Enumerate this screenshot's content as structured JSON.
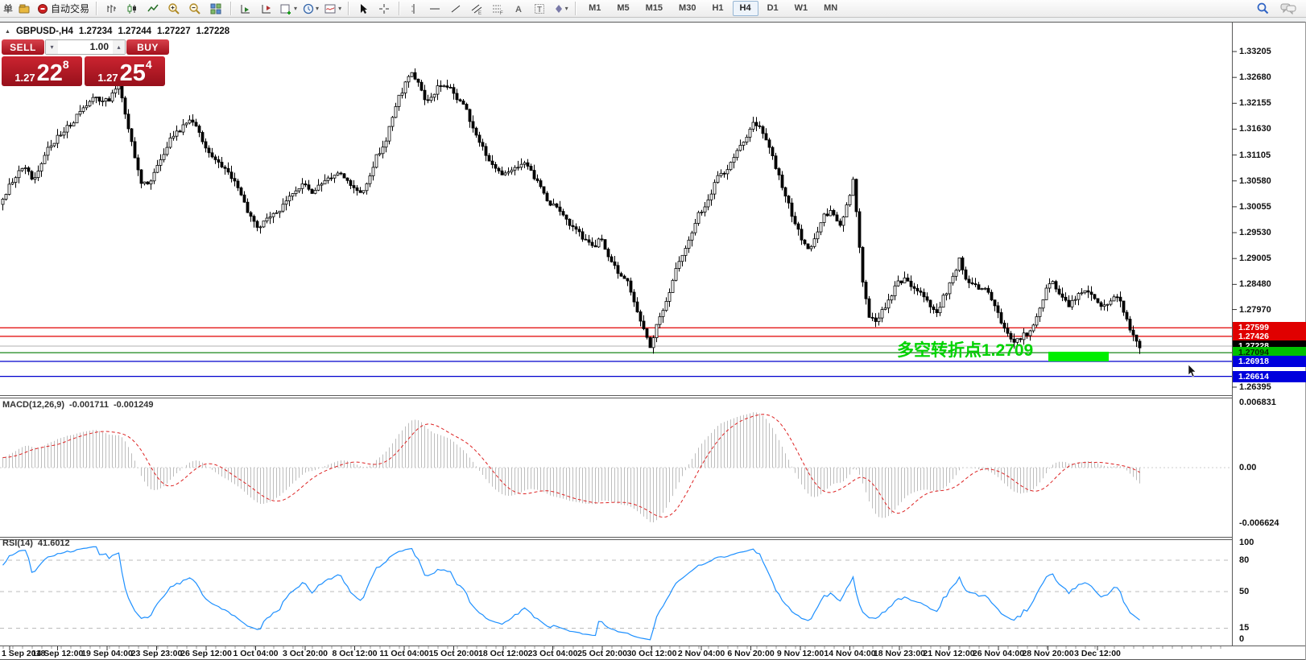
{
  "toolbar": {
    "order_label": "单",
    "autotrade_label": "自动交易",
    "timeframes": [
      "M1",
      "M5",
      "M15",
      "M30",
      "H1",
      "H4",
      "D1",
      "W1",
      "MN"
    ],
    "active_timeframe": "H4"
  },
  "quote": {
    "symbol": "GBPUSD-,H4",
    "open": "1.27234",
    "high": "1.27244",
    "low": "1.27227",
    "close": "1.27228"
  },
  "trade_panel": {
    "sell_label": "SELL",
    "buy_label": "BUY",
    "volume": "1.00",
    "volume_down_glyph": "▾",
    "volume_up_glyph": "▴",
    "sell_price": {
      "prefix": "1.27",
      "big": "22",
      "sup": "8"
    },
    "buy_price": {
      "prefix": "1.27",
      "big": "25",
      "sup": "4"
    },
    "accent_color": "#c01f2c"
  },
  "chart_data": {
    "type": "candlestick",
    "symbol": "GBPUSD-",
    "timeframe": "H4",
    "y_axis": {
      "side": "right",
      "ticks": [
        "1.33205",
        "1.32680",
        "1.32155",
        "1.31630",
        "1.31105",
        "1.30580",
        "1.30055",
        "1.29530",
        "1.29005",
        "1.28480",
        "1.27970",
        "1.26395"
      ]
    },
    "x_axis": {
      "labels": [
        "1 Sep 2018",
        "14 Sep 12:00",
        "19 Sep 04:00",
        "23 Sep 23:00",
        "26 Sep 12:00",
        "1 Oct 04:00",
        "3 Oct 20:00",
        "8 Oct 12:00",
        "11 Oct 04:00",
        "15 Oct 20:00",
        "18 Oct 12:00",
        "23 Oct 04:00",
        "25 Oct 20:00",
        "30 Oct 12:00",
        "2 Nov 04:00",
        "6 Nov 20:00",
        "9 Nov 12:00",
        "14 Nov 04:00",
        "18 Nov 23:00",
        "21 Nov 12:00",
        "26 Nov 04:00",
        "28 Nov 20:00",
        "3 Dec 12:00"
      ]
    },
    "horizontal_lines": [
      {
        "price": 1.27599,
        "label": "1.27599",
        "line_color": "#e00000",
        "badge_bg": "#e00000",
        "badge_fg": "#ffffff",
        "role": "resistance-line"
      },
      {
        "price": 1.27426,
        "label": "1.27426",
        "line_color": "#e00000",
        "badge_bg": "#e00000",
        "badge_fg": "#ffffff",
        "role": "resistance-line"
      },
      {
        "price": 1.27228,
        "label": "1.27228",
        "line_color": "#c0c0c0",
        "badge_bg": "#000000",
        "badge_fg": "#ffffff",
        "role": "bid-price"
      },
      {
        "price": 1.27094,
        "label": "1.27094",
        "line_color": "#007a00",
        "badge_bg": "#00c000",
        "badge_fg": "#002200",
        "role": "pivot-line"
      },
      {
        "price": 1.26918,
        "label": "1.26918",
        "line_color": "#0000cc",
        "badge_bg": "#0000dd",
        "badge_fg": "#ffffff",
        "role": "support-line"
      },
      {
        "price": 1.26614,
        "label": "1.26614",
        "line_color": "#0000cc",
        "badge_bg": "#0000dd",
        "badge_fg": "#ffffff",
        "role": "support-line"
      }
    ],
    "annotation": {
      "text": "多空转折点1.2709",
      "pivot_price": "1.2709",
      "text_color": "#00d300",
      "highlight_color": "#00ee00"
    },
    "price_anchors": [
      [
        0,
        1.3015
      ],
      [
        16,
        1.3065
      ],
      [
        28,
        1.3085
      ],
      [
        40,
        1.3062
      ],
      [
        56,
        1.3118
      ],
      [
        72,
        1.315
      ],
      [
        88,
        1.3175
      ],
      [
        104,
        1.321
      ],
      [
        118,
        1.3228
      ],
      [
        132,
        1.3218
      ],
      [
        146,
        1.3252
      ],
      [
        154,
        1.3195
      ],
      [
        164,
        1.312
      ],
      [
        174,
        1.3052
      ],
      [
        184,
        1.3048
      ],
      [
        196,
        1.3098
      ],
      [
        210,
        1.314
      ],
      [
        224,
        1.3165
      ],
      [
        236,
        1.318
      ],
      [
        248,
        1.3148
      ],
      [
        260,
        1.3108
      ],
      [
        272,
        1.3092
      ],
      [
        284,
        1.3074
      ],
      [
        296,
        1.3032
      ],
      [
        308,
        1.2992
      ],
      [
        318,
        1.2964
      ],
      [
        330,
        1.298
      ],
      [
        344,
        1.2992
      ],
      [
        360,
        1.3035
      ],
      [
        372,
        1.305
      ],
      [
        388,
        1.3036
      ],
      [
        404,
        1.306
      ],
      [
        420,
        1.3082
      ],
      [
        436,
        1.3046
      ],
      [
        448,
        1.3028
      ],
      [
        464,
        1.31
      ],
      [
        478,
        1.3142
      ],
      [
        492,
        1.322
      ],
      [
        508,
        1.3278
      ],
      [
        518,
        1.3255
      ],
      [
        528,
        1.3212
      ],
      [
        540,
        1.3244
      ],
      [
        552,
        1.3258
      ],
      [
        564,
        1.323
      ],
      [
        576,
        1.3206
      ],
      [
        588,
        1.3156
      ],
      [
        600,
        1.3116
      ],
      [
        612,
        1.3086
      ],
      [
        624,
        1.3072
      ],
      [
        636,
        1.308
      ],
      [
        652,
        1.3092
      ],
      [
        664,
        1.306
      ],
      [
        676,
        1.3022
      ],
      [
        688,
        1.3005
      ],
      [
        700,
        1.298
      ],
      [
        712,
        1.2964
      ],
      [
        724,
        1.2936
      ],
      [
        736,
        1.292
      ],
      [
        744,
        1.2946
      ],
      [
        756,
        1.2896
      ],
      [
        768,
        1.287
      ],
      [
        780,
        1.2846
      ],
      [
        792,
        1.278
      ],
      [
        802,
        1.2735
      ],
      [
        808,
        1.272
      ],
      [
        816,
        1.278
      ],
      [
        828,
        1.2815
      ],
      [
        840,
        1.289
      ],
      [
        852,
        1.293
      ],
      [
        864,
        1.2986
      ],
      [
        876,
        1.301
      ],
      [
        888,
        1.306
      ],
      [
        900,
        1.308
      ],
      [
        912,
        1.3116
      ],
      [
        924,
        1.314
      ],
      [
        934,
        1.3172
      ],
      [
        942,
        1.3164
      ],
      [
        952,
        1.3136
      ],
      [
        962,
        1.3086
      ],
      [
        972,
        1.3036
      ],
      [
        982,
        1.299
      ],
      [
        992,
        1.2946
      ],
      [
        1002,
        1.2916
      ],
      [
        1012,
        1.295
      ],
      [
        1022,
        1.2986
      ],
      [
        1032,
        1.3
      ],
      [
        1042,
        1.2966
      ],
      [
        1052,
        1.302
      ],
      [
        1058,
        1.3058
      ],
      [
        1064,
        1.296
      ],
      [
        1070,
        1.285
      ],
      [
        1078,
        1.2782
      ],
      [
        1086,
        1.2775
      ],
      [
        1094,
        1.2795
      ],
      [
        1102,
        1.2815
      ],
      [
        1112,
        1.285
      ],
      [
        1122,
        1.2858
      ],
      [
        1132,
        1.284
      ],
      [
        1142,
        1.2832
      ],
      [
        1152,
        1.281
      ],
      [
        1162,
        1.2792
      ],
      [
        1172,
        1.2828
      ],
      [
        1182,
        1.286
      ],
      [
        1190,
        1.2902
      ],
      [
        1196,
        1.2862
      ],
      [
        1206,
        1.2848
      ],
      [
        1216,
        1.2842
      ],
      [
        1226,
        1.2834
      ],
      [
        1236,
        1.2798
      ],
      [
        1246,
        1.2758
      ],
      [
        1256,
        1.2728
      ],
      [
        1266,
        1.274
      ],
      [
        1276,
        1.275
      ],
      [
        1286,
        1.278
      ],
      [
        1296,
        1.283
      ],
      [
        1306,
        1.2856
      ],
      [
        1316,
        1.282
      ],
      [
        1326,
        1.2806
      ],
      [
        1336,
        1.2824
      ],
      [
        1344,
        1.284
      ],
      [
        1352,
        1.2834
      ],
      [
        1360,
        1.281
      ],
      [
        1368,
        1.28
      ],
      [
        1376,
        1.2816
      ],
      [
        1384,
        1.2828
      ],
      [
        1392,
        1.2804
      ],
      [
        1400,
        1.2762
      ],
      [
        1408,
        1.2736
      ],
      [
        1414,
        1.2724
      ]
    ],
    "indicators": {
      "macd": {
        "label": "MACD(12,26,9)",
        "value_main": "-0.001711",
        "value_signal": "-0.001249",
        "scale_labels": [
          "0.006831",
          "0.00",
          "-0.006624"
        ],
        "histogram_color": "#bdbdbd",
        "signal_color": "#dd2222"
      },
      "rsi": {
        "label": "RSI(14)",
        "value": "41.6012",
        "line_color": "#1e90ff",
        "levels": [
          80,
          50,
          15
        ],
        "scale_labels": [
          "100",
          "80",
          "50",
          "15",
          "0"
        ]
      }
    }
  }
}
